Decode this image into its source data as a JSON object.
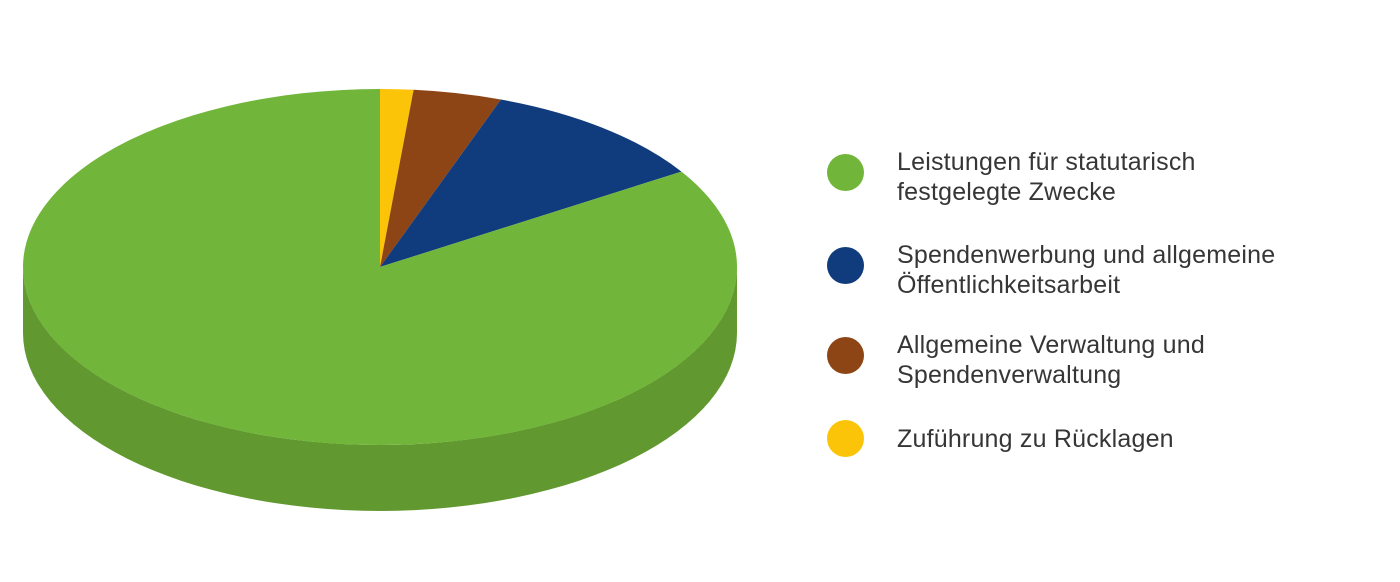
{
  "chart_data": {
    "type": "pie",
    "style": "3d",
    "legend_position": "right",
    "background_color": "#ffffff",
    "values_estimated_from_pixels": true,
    "draw_direction": "counterclockwise-from-top in slice order (visually clockwise from 12 o'clock: last slice first)",
    "slices": [
      {
        "label": "Leistungen für statutarisch festgelegte Zwecke",
        "label_lines": [
          "Leistungen für statutarisch",
          "festgelegte Zwecke"
        ],
        "value_pct": 84,
        "color": "#71b63a"
      },
      {
        "label": "Spendenwerbung und allgemeine Öffentlichkeitsarbeit",
        "label_lines": [
          "Spendenwerbung und allgemeine",
          "Öffentlichkeitsarbeit"
        ],
        "value_pct": 10.5,
        "color": "#103c7d"
      },
      {
        "label": "Allgemeine Verwaltung und Spendenverwaltung",
        "label_lines": [
          "Allgemeine Verwaltung und",
          "Spendenverwaltung"
        ],
        "value_pct": 4,
        "color": "#8e4516"
      },
      {
        "label": "Zuführung zu Rücklagen",
        "label_lines": [
          "Zuführung zu Rücklagen"
        ],
        "value_pct": 1.5,
        "color": "#fcc408"
      }
    ],
    "pie_side_color": "#619930",
    "text_color": "#363636"
  }
}
